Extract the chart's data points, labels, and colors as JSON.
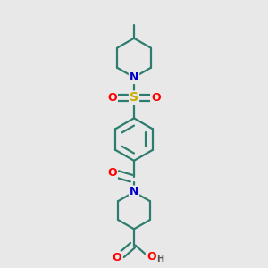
{
  "background_color": "#e8e8e8",
  "bond_color": "#2d7d6e",
  "N_color": "#0000cc",
  "S_color": "#ccaa00",
  "O_color": "#ff0000",
  "line_width": 1.6,
  "figsize": [
    3.0,
    3.0
  ],
  "dpi": 100,
  "xlim": [
    0.15,
    0.85
  ],
  "ylim": [
    0.02,
    1.0
  ]
}
